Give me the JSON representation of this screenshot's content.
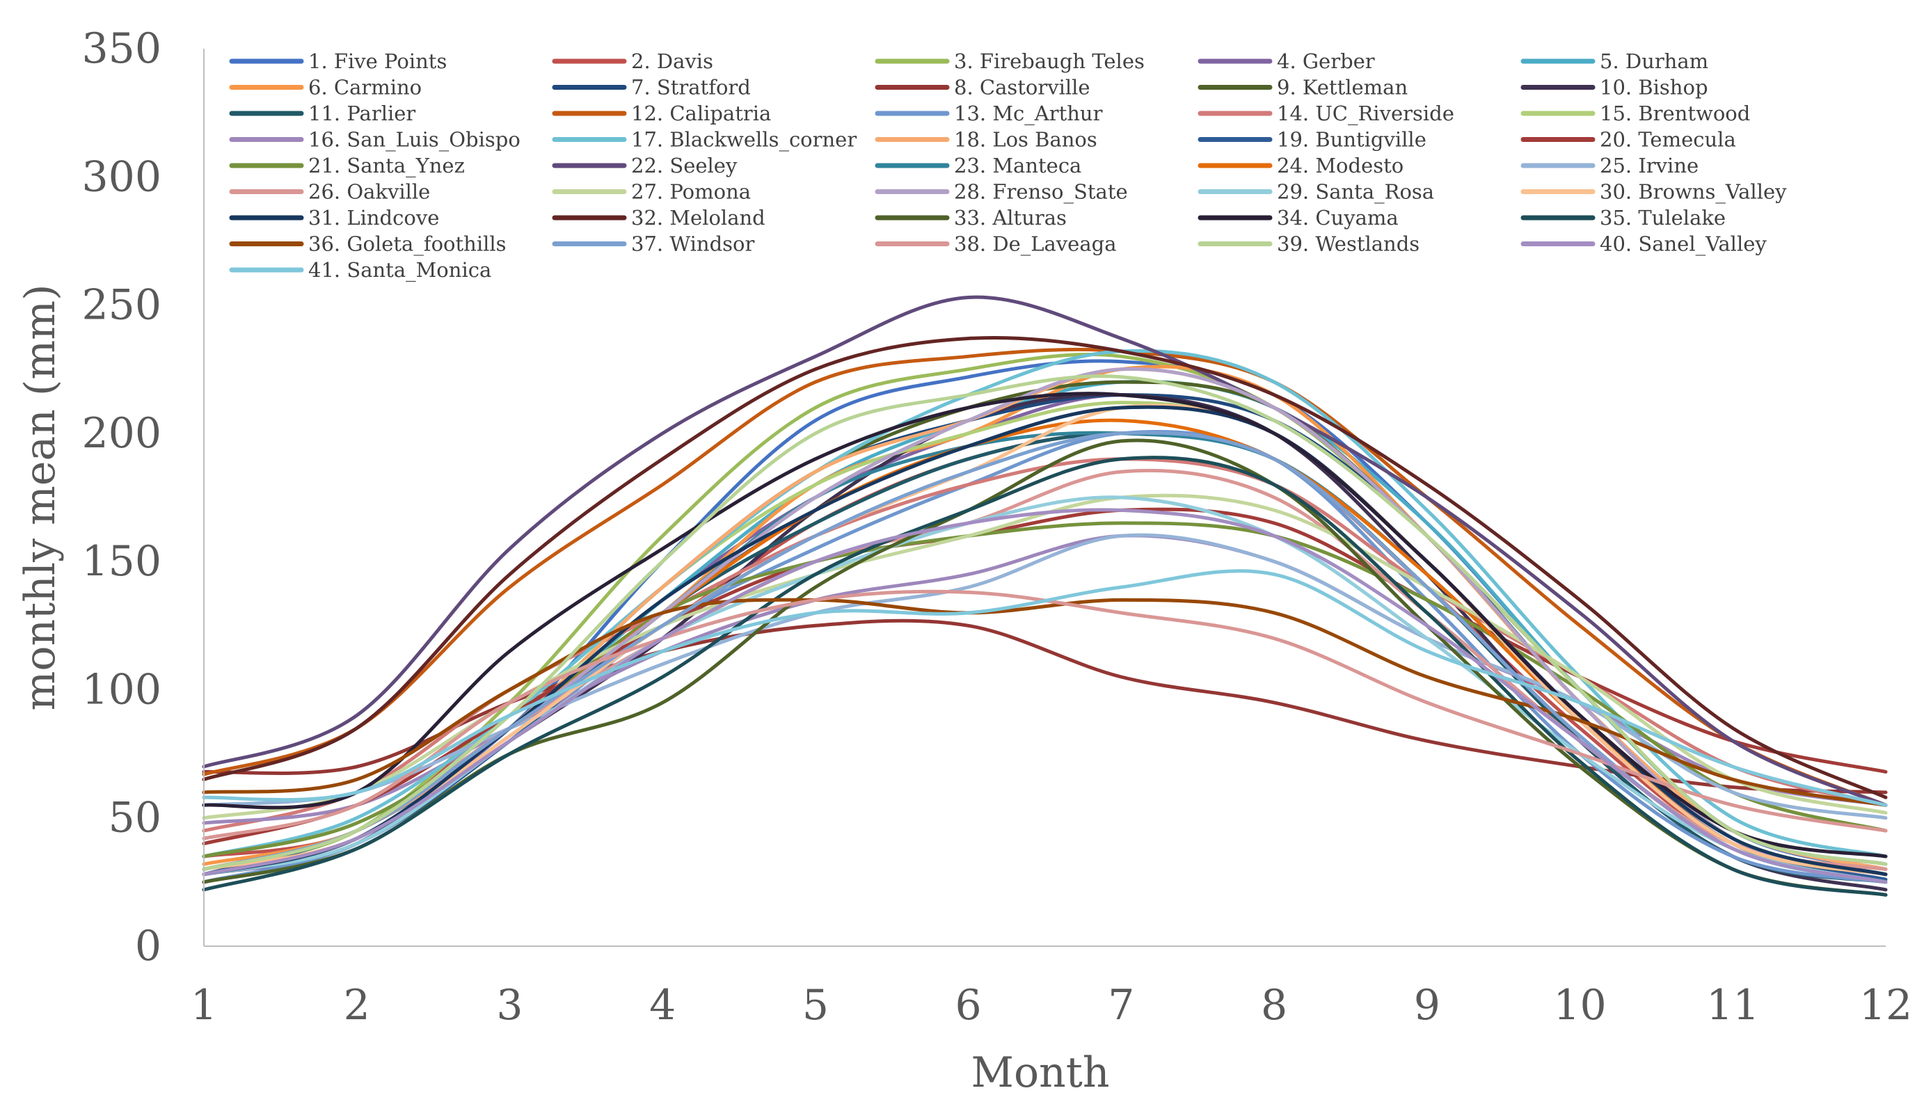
{
  "chart_data": {
    "type": "line",
    "xlabel": "Month",
    "ylabel": "monthly mean (mm)",
    "x": [
      1,
      2,
      3,
      4,
      5,
      6,
      7,
      8,
      9,
      10,
      11,
      12
    ],
    "ylim": [
      0,
      350
    ],
    "yticks": [
      0,
      50,
      100,
      150,
      200,
      250,
      300,
      350
    ],
    "grid": false,
    "legend_position": "top",
    "series": [
      {
        "name": "1. Five Points",
        "color": "#4472C4",
        "values": [
          30,
          45,
          85,
          150,
          205,
          222,
          228,
          215,
          165,
          100,
          45,
          30
        ]
      },
      {
        "name": "2. Davis",
        "color": "#C0504D",
        "values": [
          35,
          45,
          90,
          125,
          165,
          190,
          200,
          190,
          140,
          85,
          40,
          30
        ]
      },
      {
        "name": "3. Firebaugh Teles",
        "color": "#9BBB59",
        "values": [
          30,
          45,
          95,
          160,
          210,
          225,
          230,
          210,
          160,
          100,
          45,
          32
        ]
      },
      {
        "name": "4. Gerber",
        "color": "#8064A2",
        "values": [
          28,
          40,
          85,
          135,
          175,
          200,
          215,
          200,
          150,
          90,
          40,
          28
        ]
      },
      {
        "name": "5. Durham",
        "color": "#4BACC6",
        "values": [
          30,
          45,
          85,
          135,
          180,
          205,
          220,
          210,
          165,
          100,
          45,
          32
        ]
      },
      {
        "name": "6. Carmino",
        "color": "#F79646",
        "values": [
          32,
          45,
          85,
          130,
          180,
          200,
          225,
          215,
          160,
          95,
          45,
          30
        ]
      },
      {
        "name": "7. Stratford",
        "color": "#1F497D",
        "values": [
          28,
          45,
          85,
          140,
          185,
          205,
          215,
          205,
          160,
          95,
          42,
          28
        ]
      },
      {
        "name": "8. Castorville",
        "color": "#943634",
        "values": [
          68,
          70,
          95,
          115,
          125,
          125,
          105,
          95,
          80,
          70,
          62,
          60
        ]
      },
      {
        "name": "9. Kettleman",
        "color": "#4F6228",
        "values": [
          30,
          45,
          85,
          140,
          185,
          210,
          220,
          210,
          160,
          95,
          42,
          28
        ]
      },
      {
        "name": "10. Bishop",
        "color": "#3F3151",
        "values": [
          25,
          40,
          80,
          120,
          170,
          205,
          215,
          200,
          145,
          80,
          35,
          22
        ]
      },
      {
        "name": "11. Parlier",
        "color": "#215967",
        "values": [
          28,
          42,
          80,
          130,
          165,
          190,
          200,
          190,
          140,
          80,
          35,
          25
        ]
      },
      {
        "name": "12. Calipatria",
        "color": "#C55A11",
        "values": [
          67,
          85,
          140,
          180,
          220,
          230,
          232,
          220,
          175,
          125,
          80,
          55
        ]
      },
      {
        "name": "13. Mc_Arthur",
        "color": "#6F97CE",
        "values": [
          25,
          40,
          80,
          125,
          155,
          180,
          200,
          190,
          135,
          75,
          35,
          25
        ]
      },
      {
        "name": "14. UC_Riverside",
        "color": "#D27A78",
        "values": [
          45,
          60,
          100,
          130,
          160,
          180,
          190,
          180,
          140,
          105,
          70,
          55
        ]
      },
      {
        "name": "15. Brentwood",
        "color": "#B1CF78",
        "values": [
          30,
          45,
          85,
          140,
          180,
          200,
          212,
          200,
          150,
          90,
          42,
          28
        ]
      },
      {
        "name": "16. San_Luis_Obispo",
        "color": "#9D86BB",
        "values": [
          48,
          55,
          85,
          115,
          135,
          145,
          160,
          150,
          120,
          95,
          65,
          55
        ]
      },
      {
        "name": "17. Blackwells_corner",
        "color": "#6CC0D3",
        "values": [
          35,
          50,
          90,
          140,
          185,
          215,
          232,
          220,
          170,
          105,
          50,
          35
        ]
      },
      {
        "name": "18. Los Banos",
        "color": "#F8A96F",
        "values": [
          30,
          45,
          85,
          140,
          185,
          205,
          225,
          210,
          160,
          95,
          45,
          30
        ]
      },
      {
        "name": "19. Buntigville",
        "color": "#2E5C96",
        "values": [
          28,
          40,
          80,
          130,
          170,
          195,
          210,
          200,
          150,
          88,
          40,
          26
        ]
      },
      {
        "name": "20. Temecula",
        "color": "#A23B38",
        "values": [
          40,
          55,
          90,
          125,
          150,
          160,
          170,
          165,
          135,
          105,
          80,
          68
        ]
      },
      {
        "name": "21. Santa_Ynez",
        "color": "#76923C",
        "values": [
          35,
          48,
          85,
          130,
          150,
          160,
          165,
          160,
          135,
          100,
          60,
          45
        ]
      },
      {
        "name": "22. Seeley",
        "color": "#604A7B",
        "values": [
          70,
          90,
          155,
          200,
          230,
          253,
          237,
          210,
          175,
          130,
          80,
          55
        ]
      },
      {
        "name": "23. Manteca",
        "color": "#31849B",
        "values": [
          30,
          45,
          85,
          130,
          175,
          195,
          200,
          190,
          145,
          88,
          40,
          28
        ]
      },
      {
        "name": "24. Modesto",
        "color": "#E46C0A",
        "values": [
          30,
          45,
          85,
          130,
          170,
          195,
          205,
          190,
          145,
          88,
          40,
          28
        ]
      },
      {
        "name": "25. Irvine",
        "color": "#95B3D7",
        "values": [
          55,
          60,
          85,
          110,
          130,
          140,
          160,
          150,
          120,
          95,
          60,
          50
        ]
      },
      {
        "name": "26. Oakville",
        "color": "#DA9694",
        "values": [
          30,
          45,
          85,
          120,
          150,
          165,
          185,
          175,
          130,
          80,
          40,
          30
        ]
      },
      {
        "name": "27. Pomona",
        "color": "#C3D69B",
        "values": [
          50,
          60,
          95,
          125,
          145,
          160,
          175,
          170,
          140,
          105,
          65,
          52
        ]
      },
      {
        "name": "28. Frenso_State",
        "color": "#B2A1C7",
        "values": [
          30,
          45,
          85,
          130,
          175,
          205,
          225,
          210,
          160,
          95,
          42,
          28
        ]
      },
      {
        "name": "29. Santa_Rosa",
        "color": "#92CDDC",
        "values": [
          28,
          40,
          80,
          120,
          145,
          165,
          175,
          160,
          120,
          75,
          38,
          25
        ]
      },
      {
        "name": "30. Browns_Valley",
        "color": "#FAC090",
        "values": [
          30,
          42,
          82,
          125,
          160,
          185,
          210,
          200,
          150,
          88,
          40,
          28
        ]
      },
      {
        "name": "31. Lindcove",
        "color": "#17375E",
        "values": [
          28,
          42,
          85,
          135,
          170,
          195,
          210,
          200,
          150,
          90,
          42,
          28
        ]
      },
      {
        "name": "32. Meloland",
        "color": "#632523",
        "values": [
          65,
          85,
          145,
          190,
          225,
          237,
          232,
          215,
          180,
          135,
          85,
          58
        ]
      },
      {
        "name": "33. Alturas",
        "color": "#4F6228",
        "values": [
          25,
          38,
          75,
          95,
          140,
          170,
          197,
          180,
          125,
          70,
          30,
          20
        ]
      },
      {
        "name": "34. Cuyama",
        "color": "#292036",
        "values": [
          55,
          60,
          115,
          155,
          190,
          210,
          215,
          200,
          150,
          90,
          45,
          35
        ]
      },
      {
        "name": "35. Tulelake",
        "color": "#1D4E58",
        "values": [
          22,
          38,
          75,
          105,
          145,
          170,
          190,
          180,
          130,
          72,
          30,
          20
        ]
      },
      {
        "name": "36. Goleta_foothills",
        "color": "#984806",
        "values": [
          60,
          65,
          100,
          130,
          135,
          130,
          135,
          130,
          105,
          88,
          65,
          55
        ]
      },
      {
        "name": "37. Windsor",
        "color": "#7BA0D0",
        "values": [
          30,
          45,
          85,
          125,
          160,
          185,
          200,
          190,
          140,
          82,
          38,
          25
        ]
      },
      {
        "name": "38. De_Laveaga",
        "color": "#D99694",
        "values": [
          42,
          55,
          95,
          120,
          135,
          138,
          130,
          120,
          95,
          75,
          55,
          45
        ]
      },
      {
        "name": "39. Westlands",
        "color": "#B8D394",
        "values": [
          30,
          45,
          90,
          150,
          200,
          215,
          222,
          205,
          160,
          100,
          45,
          32
        ]
      },
      {
        "name": "40. Sanel_Valley",
        "color": "#A38DC2",
        "values": [
          28,
          42,
          80,
          120,
          150,
          165,
          170,
          160,
          125,
          80,
          38,
          25
        ]
      },
      {
        "name": "41. Santa_Monica",
        "color": "#7FC7DB",
        "values": [
          58,
          60,
          90,
          115,
          130,
          130,
          140,
          145,
          115,
          95,
          70,
          55
        ]
      }
    ]
  }
}
